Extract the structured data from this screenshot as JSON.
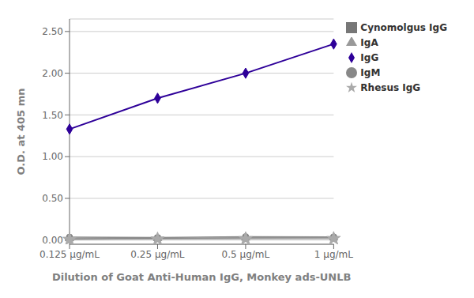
{
  "chart_data": {
    "type": "line",
    "categories": [
      "0.125 μg/mL",
      "0.25 μg/mL",
      "0.5 μg/mL",
      "1 μg/mL"
    ],
    "series": [
      {
        "name": "IgG",
        "color": "#2e0099",
        "marker": "diamond",
        "values": [
          1.33,
          1.7,
          2.0,
          2.35
        ]
      },
      {
        "name": "IgM",
        "color": "#888888",
        "marker": "circle",
        "values": [
          0.035,
          0.03,
          0.04,
          0.038
        ]
      },
      {
        "name": "IgA",
        "color": "#999999",
        "marker": "triangle",
        "values": [
          0.02,
          0.022,
          0.028,
          0.03
        ]
      },
      {
        "name": "Cynomolgus IgG",
        "color": "#777777",
        "marker": "square",
        "values": [
          0.01,
          0.018,
          0.02,
          0.022
        ]
      },
      {
        "name": "Rhesus IgG",
        "color": "#aaaaaa",
        "marker": "star",
        "values": [
          0.008,
          0.012,
          0.016,
          0.018
        ]
      }
    ],
    "xlabel": "Dilution of Goat Anti-Human IgG, Monkey ads-UNLB",
    "ylabel": "O.D. at 405 mn",
    "ylim": [
      -0.05,
      2.65
    ],
    "yticks": [
      {
        "value": 0.0,
        "label": "0.00"
      },
      {
        "value": 0.5,
        "label": "0.50"
      },
      {
        "value": 1.0,
        "label": "1.00"
      },
      {
        "value": 1.5,
        "label": "1.50"
      },
      {
        "value": 2.0,
        "label": "2.00"
      },
      {
        "value": 2.5,
        "label": "2.50"
      }
    ],
    "grid": true,
    "legend": "upper right"
  }
}
